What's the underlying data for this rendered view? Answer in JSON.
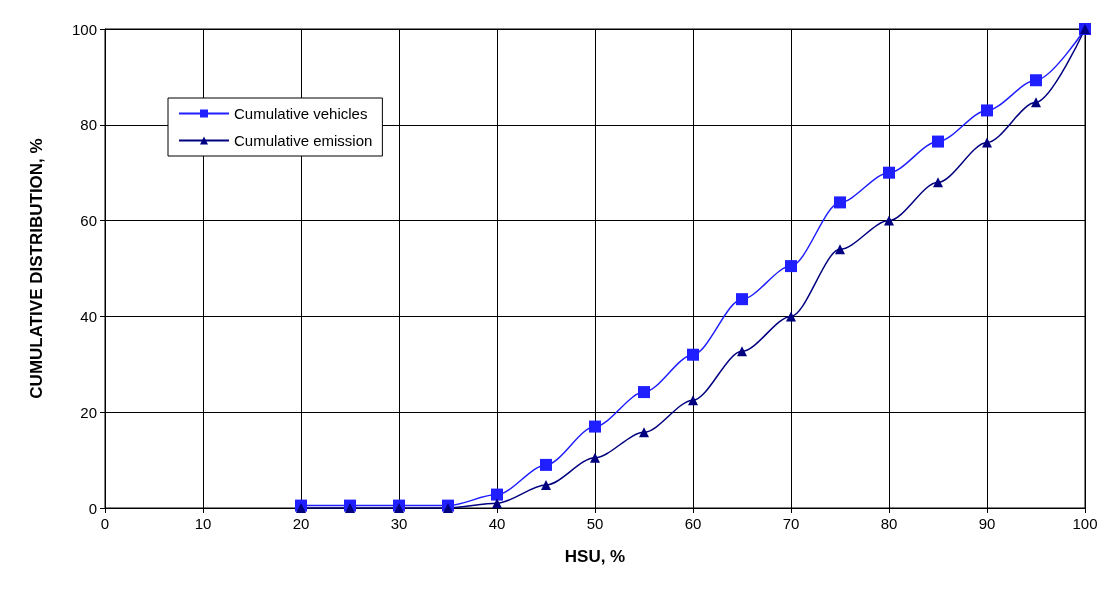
{
  "chart_data": {
    "type": "line",
    "xlabel": "HSU, %",
    "ylabel": "CUMULATIVE DISTRIBUTION, %",
    "x": [
      20,
      25,
      30,
      35,
      40,
      45,
      50,
      55,
      60,
      65,
      70,
      75,
      80,
      85,
      90,
      95,
      100
    ],
    "series": [
      {
        "name": "Cumulative vehicles",
        "color": "#1f1fff",
        "marker": "square",
        "values": [
          0.5,
          0.5,
          0.5,
          0.5,
          2.8,
          9,
          17,
          24.2,
          32,
          43.6,
          50.5,
          63.8,
          70,
          76.5,
          83,
          89.3,
          100
        ]
      },
      {
        "name": "Cumulative emission",
        "color": "#000080",
        "marker": "triangle",
        "values": [
          0,
          0,
          0,
          0,
          1,
          4.8,
          10.5,
          15.8,
          22.5,
          32.7,
          40,
          54,
          60,
          68,
          76.3,
          84.7,
          100
        ]
      }
    ],
    "xlim": [
      0,
      100
    ],
    "xticks": [
      0,
      10,
      20,
      30,
      40,
      50,
      60,
      70,
      80,
      90,
      100
    ],
    "ylim": [
      0,
      100
    ],
    "yticks": [
      0,
      20,
      40,
      60,
      80,
      100
    ],
    "grid": true,
    "legend": "top left",
    "line_style": "solid"
  }
}
